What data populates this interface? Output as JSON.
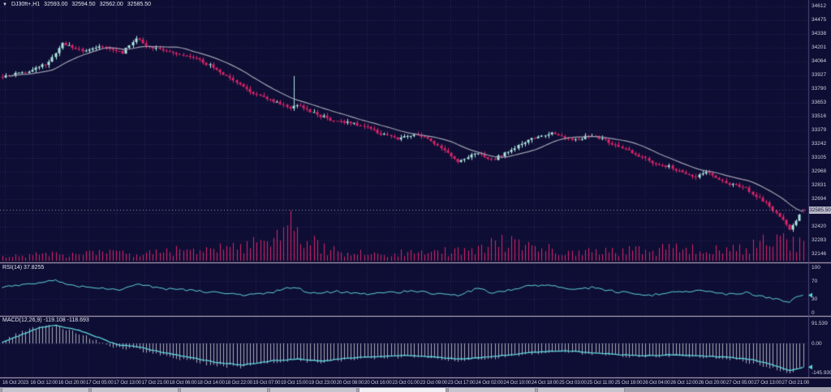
{
  "header": {
    "dropdown_icon": "▼",
    "symbol": "DJ30ft+,H1",
    "open": "32593.00",
    "high": "32594.50",
    "low": "32562.00",
    "close": "32585.50"
  },
  "price_axis": {
    "labels": [
      "34612",
      "34475",
      "34338",
      "34201",
      "34064",
      "33927",
      "33790",
      "33653",
      "33516",
      "33379",
      "33242",
      "33105",
      "32968",
      "32831",
      "32694",
      "32557",
      "32420",
      "32283",
      "32146"
    ],
    "current_price": "32585.50"
  },
  "rsi_panel": {
    "label": "RSI(14) 37.8255",
    "axis_labels": [
      "100",
      "70",
      "30",
      "0"
    ],
    "levels": [
      70,
      30
    ],
    "current_value": 37.8255
  },
  "macd_panel": {
    "label": "MACD(12,26,9) -119.108 -118.693",
    "axis_labels": [
      "91.539",
      "0.00",
      "-145.939"
    ],
    "current_main": -119.108,
    "current_signal": -118.693
  },
  "time_axis": {
    "labels": [
      "16 Oct 2023",
      "16 Oct 12:00",
      "16 Oct 20:00",
      "17 Oct 05:00",
      "17 Oct 13:00",
      "17 Oct 21:00",
      "18 Oct 06:00",
      "18 Oct 14:00",
      "18 Oct 22:00",
      "19 Oct 07:00",
      "19 Oct 15:00",
      "19 Oct 23:00",
      "20 Oct 08:00",
      "20 Oct 16:00",
      "23 Oct 01:00",
      "23 Oct 09:00",
      "23 Oct 17:00",
      "24 Oct 02:00",
      "24 Oct 10:00",
      "24 Oct 18:00",
      "25 Oct 03:00",
      "25 Oct 11:00",
      "25 Oct 19:00",
      "26 Oct 04:00",
      "26 Oct 12:00",
      "26 Oct 20:00",
      "27 Oct 05:00",
      "27 Oct 13:00",
      "27 Oct 21:00"
    ]
  },
  "colors": {
    "background": "#0e0e34",
    "grid": "#26265c",
    "bull": "#aee8e0",
    "bear": "#dc2468",
    "ma_line": "#a0a0b2",
    "indicator_line": "#5fd4dc",
    "histogram": "#c6c6d4",
    "volume": "#dc2468",
    "separator": "#cfbccf",
    "axis_text": "#ccccdd",
    "badge_bg": "#b8b8c6"
  },
  "chart_data": {
    "type": "candlestick",
    "title": "DJ30ft+,H1",
    "timeframe": "H1",
    "bars": 240,
    "ylim": [
      32146,
      34612
    ],
    "y_step": 137,
    "last_bar": {
      "open": 32593.0,
      "high": 32594.5,
      "low": 32562.0,
      "close": 32585.5
    },
    "spike_bar": {
      "index": 87,
      "high": 33920
    },
    "price_anchors": [
      [
        0,
        33920
      ],
      [
        8,
        33960
      ],
      [
        14,
        34060
      ],
      [
        18,
        34240
      ],
      [
        24,
        34170
      ],
      [
        30,
        34210
      ],
      [
        36,
        34150
      ],
      [
        40,
        34300
      ],
      [
        44,
        34210
      ],
      [
        52,
        34140
      ],
      [
        58,
        34090
      ],
      [
        64,
        33990
      ],
      [
        70,
        33860
      ],
      [
        74,
        33760
      ],
      [
        78,
        33700
      ],
      [
        82,
        33660
      ],
      [
        86,
        33610
      ],
      [
        88,
        33640
      ],
      [
        92,
        33560
      ],
      [
        98,
        33490
      ],
      [
        106,
        33440
      ],
      [
        112,
        33360
      ],
      [
        118,
        33300
      ],
      [
        124,
        33330
      ],
      [
        130,
        33240
      ],
      [
        136,
        33060
      ],
      [
        142,
        33160
      ],
      [
        146,
        33080
      ],
      [
        152,
        33190
      ],
      [
        158,
        33300
      ],
      [
        164,
        33350
      ],
      [
        170,
        33280
      ],
      [
        176,
        33330
      ],
      [
        182,
        33250
      ],
      [
        188,
        33160
      ],
      [
        194,
        33060
      ],
      [
        200,
        33010
      ],
      [
        206,
        32910
      ],
      [
        210,
        32960
      ],
      [
        216,
        32860
      ],
      [
        222,
        32800
      ],
      [
        228,
        32660
      ],
      [
        232,
        32520
      ],
      [
        235,
        32400
      ],
      [
        237,
        32480
      ],
      [
        239,
        32585.5
      ]
    ],
    "volume_anchors": [
      [
        0,
        6
      ],
      [
        20,
        8
      ],
      [
        40,
        10
      ],
      [
        60,
        13
      ],
      [
        70,
        17
      ],
      [
        80,
        22
      ],
      [
        86,
        42
      ],
      [
        90,
        28
      ],
      [
        96,
        14
      ],
      [
        110,
        8
      ],
      [
        126,
        10
      ],
      [
        140,
        12
      ],
      [
        150,
        24
      ],
      [
        156,
        18
      ],
      [
        170,
        10
      ],
      [
        185,
        12
      ],
      [
        200,
        14
      ],
      [
        216,
        12
      ],
      [
        228,
        22
      ],
      [
        234,
        30
      ],
      [
        239,
        16
      ]
    ],
    "rsi_anchors": [
      [
        0,
        55
      ],
      [
        10,
        63
      ],
      [
        16,
        71
      ],
      [
        22,
        57
      ],
      [
        30,
        54
      ],
      [
        36,
        50
      ],
      [
        40,
        64
      ],
      [
        48,
        52
      ],
      [
        56,
        49
      ],
      [
        64,
        44
      ],
      [
        72,
        37
      ],
      [
        80,
        43
      ],
      [
        87,
        57
      ],
      [
        92,
        42
      ],
      [
        100,
        46
      ],
      [
        108,
        41
      ],
      [
        116,
        44
      ],
      [
        124,
        47
      ],
      [
        130,
        40
      ],
      [
        136,
        37
      ],
      [
        142,
        53
      ],
      [
        146,
        44
      ],
      [
        152,
        50
      ],
      [
        158,
        59
      ],
      [
        164,
        61
      ],
      [
        170,
        50
      ],
      [
        176,
        55
      ],
      [
        182,
        47
      ],
      [
        188,
        42
      ],
      [
        194,
        38
      ],
      [
        200,
        46
      ],
      [
        208,
        48
      ],
      [
        216,
        40
      ],
      [
        222,
        43
      ],
      [
        228,
        34
      ],
      [
        232,
        27
      ],
      [
        235,
        24
      ],
      [
        237,
        33
      ],
      [
        239,
        37.8
      ]
    ],
    "macd_signal_anchors": [
      [
        0,
        5
      ],
      [
        6,
        45
      ],
      [
        12,
        82
      ],
      [
        16,
        90
      ],
      [
        22,
        70
      ],
      [
        28,
        35
      ],
      [
        34,
        -5
      ],
      [
        40,
        -15
      ],
      [
        48,
        -45
      ],
      [
        56,
        -70
      ],
      [
        64,
        -95
      ],
      [
        72,
        -108
      ],
      [
        80,
        -88
      ],
      [
        88,
        -78
      ],
      [
        96,
        -88
      ],
      [
        104,
        -72
      ],
      [
        112,
        -66
      ],
      [
        120,
        -60
      ],
      [
        128,
        -66
      ],
      [
        136,
        -78
      ],
      [
        144,
        -70
      ],
      [
        152,
        -56
      ],
      [
        160,
        -42
      ],
      [
        168,
        -36
      ],
      [
        176,
        -46
      ],
      [
        184,
        -56
      ],
      [
        192,
        -62
      ],
      [
        200,
        -56
      ],
      [
        208,
        -62
      ],
      [
        216,
        -68
      ],
      [
        224,
        -82
      ],
      [
        230,
        -106
      ],
      [
        235,
        -136
      ],
      [
        237,
        -128
      ],
      [
        239,
        -118.7
      ]
    ],
    "macd_hist_anchors": [
      [
        0,
        10
      ],
      [
        6,
        60
      ],
      [
        12,
        88
      ],
      [
        16,
        86
      ],
      [
        22,
        55
      ],
      [
        28,
        15
      ],
      [
        34,
        -25
      ],
      [
        40,
        -30
      ],
      [
        48,
        -60
      ],
      [
        56,
        -85
      ],
      [
        64,
        -112
      ],
      [
        72,
        -118
      ],
      [
        80,
        -92
      ],
      [
        88,
        -85
      ],
      [
        96,
        -98
      ],
      [
        104,
        -78
      ],
      [
        112,
        -72
      ],
      [
        120,
        -66
      ],
      [
        128,
        -74
      ],
      [
        136,
        -88
      ],
      [
        144,
        -78
      ],
      [
        152,
        -62
      ],
      [
        160,
        -48
      ],
      [
        168,
        -42
      ],
      [
        176,
        -52
      ],
      [
        184,
        -62
      ],
      [
        192,
        -68
      ],
      [
        200,
        -62
      ],
      [
        208,
        -70
      ],
      [
        216,
        -78
      ],
      [
        224,
        -98
      ],
      [
        230,
        -122
      ],
      [
        235,
        -146
      ],
      [
        237,
        -132
      ],
      [
        239,
        -119.1
      ]
    ]
  }
}
